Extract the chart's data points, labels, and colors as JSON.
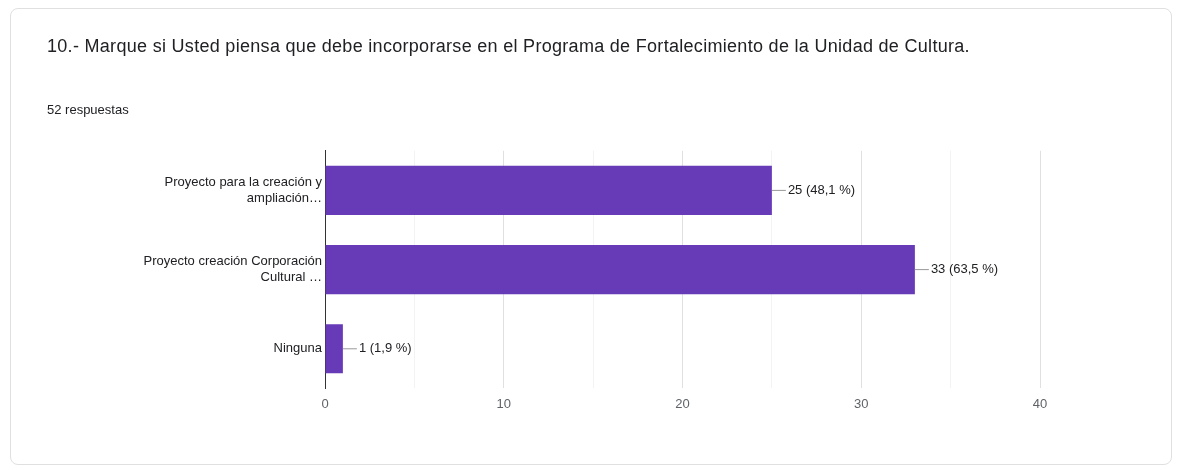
{
  "chart_data": {
    "type": "bar",
    "orientation": "horizontal",
    "title": "10.- Marque si Usted piensa que debe incorporarse en el Programa de Fortalecimiento de la Unidad de Cultura.",
    "subtitle": "52 respuestas",
    "categories": [
      "Proyecto para la creación y ampliación…",
      "Proyecto creación Corporación Cultural …",
      "Ninguna"
    ],
    "values": [
      25,
      33,
      1
    ],
    "color": "#673ab7",
    "value_labels": [
      "25 (48,1 %)",
      "33 (63,5 %)",
      "1 (1,9 %)"
    ],
    "xlim": [
      0,
      40
    ],
    "xticks": [
      0,
      {
        "value": 5,
        "label": null
      },
      10,
      {
        "value": 15,
        "label": null
      },
      20,
      {
        "value": 25,
        "label": null
      },
      30,
      {
        "value": 35,
        "label": null
      },
      40
    ],
    "grid": "x",
    "legend": false
  }
}
